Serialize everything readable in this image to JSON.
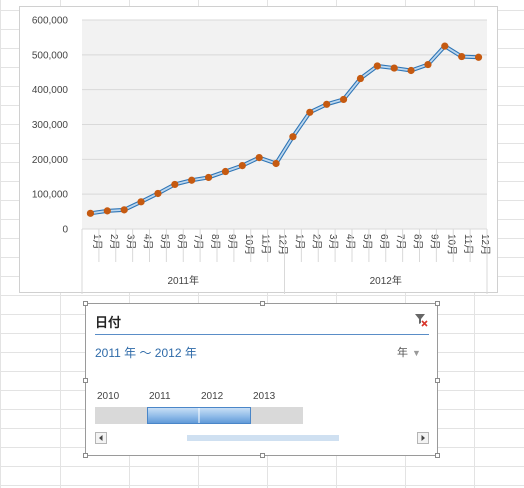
{
  "chart_data": {
    "type": "line",
    "title": "",
    "xlabel": "",
    "ylabel": "",
    "ylim": [
      0,
      600000
    ],
    "yticks": [
      "0",
      "100,000",
      "200,000",
      "300,000",
      "400,000",
      "500,000",
      "600,000"
    ],
    "ytick_values": [
      0,
      100000,
      200000,
      300000,
      400000,
      500000,
      600000
    ],
    "grid": true,
    "legend": "none",
    "categories": [
      "1月",
      "2月",
      "3月",
      "4月",
      "5月",
      "6月",
      "7月",
      "8月",
      "9月",
      "10月",
      "11月",
      "12月",
      "1月",
      "2月",
      "3月",
      "4月",
      "5月",
      "6月",
      "7月",
      "8月",
      "9月",
      "10月",
      "11月",
      "12月"
    ],
    "groups": [
      {
        "label": "2011年",
        "count": 12
      },
      {
        "label": "2012年",
        "count": 12
      }
    ],
    "series": [
      {
        "values": [
          45000,
          52000,
          55000,
          78000,
          102000,
          128000,
          140000,
          148000,
          165000,
          182000,
          205000,
          188000,
          265000,
          335000,
          358000,
          372000,
          432000,
          468000,
          462000,
          455000,
          472000,
          525000,
          495000,
          493000
        ]
      }
    ],
    "colors": {
      "line": "#5b9bd5",
      "marker": "#c55a11",
      "plot_bg": "#f2f2f2",
      "grid": "#d9d9d9"
    }
  },
  "slicer": {
    "title": "日付",
    "range_label": "2011 年 ～ 2012 年",
    "level": "年",
    "level_caret": "▼",
    "years": [
      "2010",
      "2011",
      "2012",
      "2013"
    ],
    "selected_years": [
      "2011",
      "2012"
    ],
    "icons": {
      "clear": "filter-clear-icon",
      "left": "scroll-left-icon",
      "right": "scroll-right-icon"
    }
  }
}
